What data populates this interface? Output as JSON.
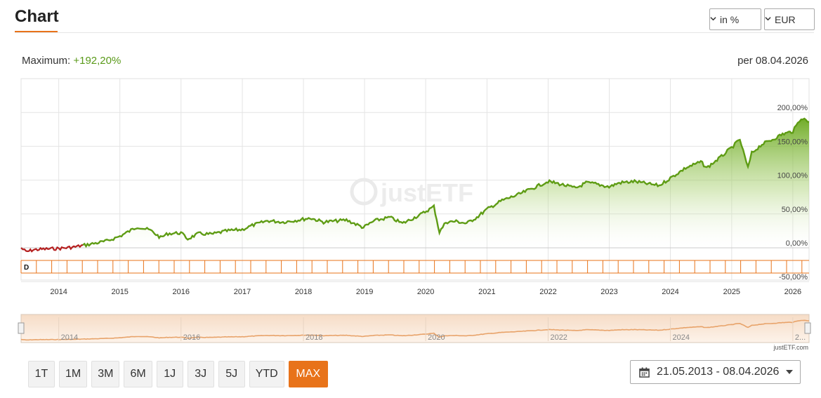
{
  "header": {
    "title": "Chart",
    "unit_select": "in %",
    "currency_select": "EUR"
  },
  "summary": {
    "max_label": "Maximum:",
    "max_value": "+192,20%",
    "as_of": "per 08.04.2026"
  },
  "colors": {
    "accent": "#e8731a",
    "positive_line": "#5e9c14",
    "negative_line": "#b52020",
    "navigator": "#e8a36a"
  },
  "watermark": "justETF",
  "credit": "justETF.com",
  "range_buttons": [
    "1T",
    "1M",
    "3M",
    "6M",
    "1J",
    "3J",
    "5J",
    "YTD",
    "MAX"
  ],
  "active_range": "MAX",
  "date_range": "21.05.2013 - 08.04.2026",
  "chart_data": {
    "type": "area",
    "x_start": "2013-05-21",
    "x_end": "2026-04-08",
    "y_unit": "%",
    "ylim": [
      -50,
      200
    ],
    "y_ticks": [
      "200,00%",
      "150,00%",
      "100,00%",
      "50,00%",
      "0,00%",
      "-50,00%"
    ],
    "x_ticks": [
      "2014",
      "2015",
      "2016",
      "2017",
      "2018",
      "2019",
      "2020",
      "2021",
      "2022",
      "2023",
      "2024",
      "2025",
      "2026"
    ],
    "navigator_ticks": [
      "2014",
      "2016",
      "2018",
      "2020",
      "2022",
      "2024",
      "2..."
    ],
    "dividend_markers": [
      "D"
    ],
    "series": [
      {
        "x": [
          "2013-05-21",
          "2013-06-20",
          "2013-08-01",
          "2013-10-01",
          "2014-01-01",
          "2014-04-01",
          "2014-07-01",
          "2014-10-15",
          "2015-01-01",
          "2015-04-15",
          "2015-07-01",
          "2015-09-01",
          "2015-10-15",
          "2016-01-01",
          "2016-02-10",
          "2016-04-15",
          "2016-07-01",
          "2016-10-01",
          "2017-01-01",
          "2017-03-01",
          "2017-06-01",
          "2017-09-01",
          "2017-12-01",
          "2018-02-10",
          "2018-05-01",
          "2018-09-15",
          "2018-12-25",
          "2019-03-01",
          "2019-06-01",
          "2019-08-15",
          "2019-12-01",
          "2020-02-19",
          "2020-03-23",
          "2020-05-01",
          "2020-07-01",
          "2020-09-01",
          "2020-11-01",
          "2021-01-01",
          "2021-04-01",
          "2021-07-01",
          "2021-10-01",
          "2021-12-31",
          "2022-03-01",
          "2022-06-15",
          "2022-08-15",
          "2022-10-01",
          "2022-12-31",
          "2023-03-01",
          "2023-06-01",
          "2023-09-01",
          "2023-10-27",
          "2024-01-01",
          "2024-04-01",
          "2024-07-01",
          "2024-08-05",
          "2024-11-01",
          "2024-12-31",
          "2025-02-19",
          "2025-04-08",
          "2025-05-01",
          "2025-07-01",
          "2025-09-01",
          "2025-11-01",
          "2026-01-01",
          "2026-02-20",
          "2026-04-08"
        ],
        "values": [
          0,
          -6,
          -3,
          -2,
          -1,
          1,
          5,
          10,
          17,
          31,
          26,
          15,
          21,
          22,
          13,
          21,
          20,
          25,
          27,
          33,
          40,
          38,
          41,
          44,
          38,
          41,
          30,
          40,
          45,
          36,
          49,
          61,
          23,
          38,
          39,
          36,
          45,
          57,
          70,
          78,
          88,
          98,
          95,
          88,
          96,
          95,
          90,
          96,
          98,
          94,
          92,
          103,
          118,
          127,
          118,
          135,
          148,
          160,
          118,
          140,
          153,
          160,
          168,
          172,
          192,
          186
        ]
      }
    ]
  }
}
